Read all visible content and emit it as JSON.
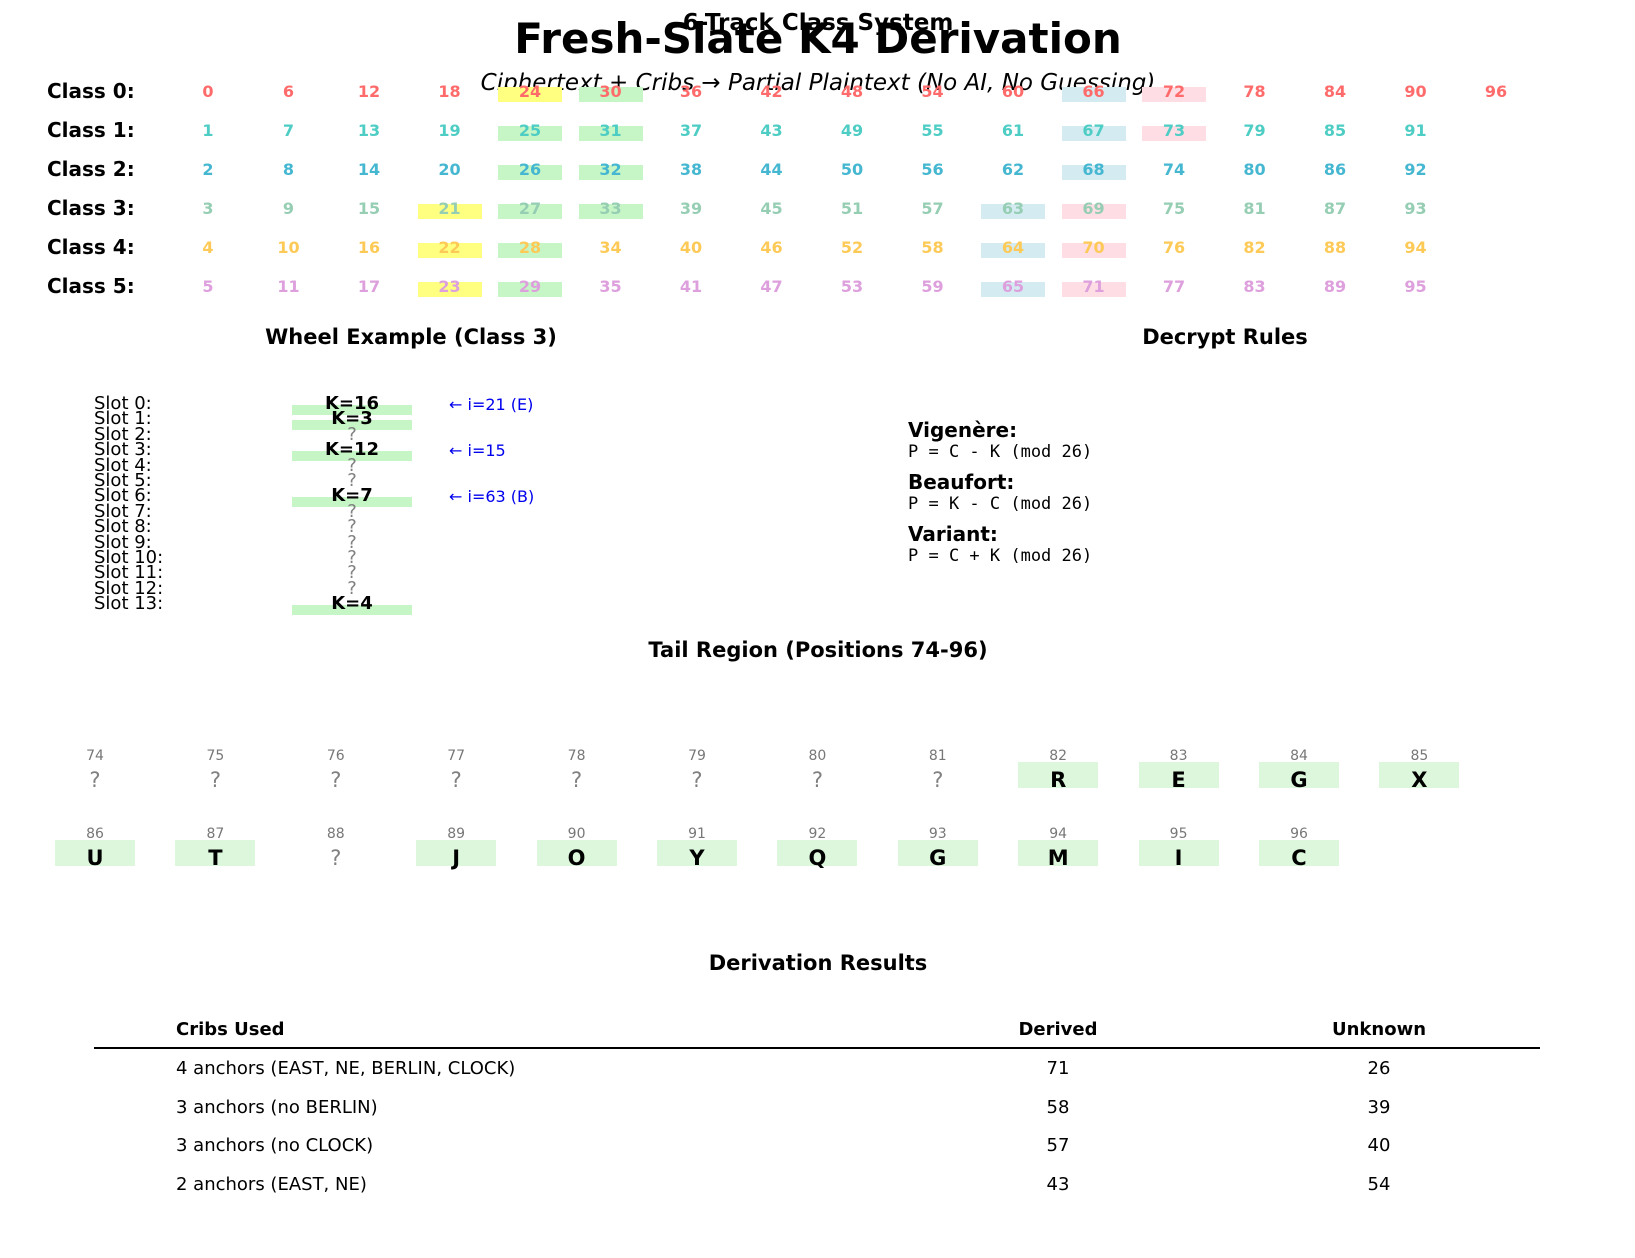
{
  "header": {
    "title": "Fresh-Slate K4 Derivation",
    "subtitle": "Ciphertext + Cribs → Partial Plaintext (No AI, No Guessing)",
    "overlay_title": "6-Track Class System"
  },
  "class_system": {
    "rows": [
      {
        "label": "Class 0:",
        "color": "#ff6b6b",
        "numbers": [
          "0",
          "6",
          "12",
          "18",
          "24",
          "30",
          "36",
          "42",
          "48",
          "54",
          "60",
          "66",
          "72",
          "78",
          "84",
          "90",
          "96"
        ]
      },
      {
        "label": "Class 1:",
        "color": "#4ecdc4",
        "numbers": [
          "1",
          "7",
          "13",
          "19",
          "25",
          "31",
          "37",
          "43",
          "49",
          "55",
          "61",
          "67",
          "73",
          "79",
          "85",
          "91"
        ]
      },
      {
        "label": "Class 2:",
        "color": "#45b7d1",
        "numbers": [
          "2",
          "8",
          "14",
          "20",
          "26",
          "32",
          "38",
          "44",
          "50",
          "56",
          "62",
          "68",
          "74",
          "80",
          "86",
          "92"
        ]
      },
      {
        "label": "Class 3:",
        "color": "#96ceb4",
        "numbers": [
          "3",
          "9",
          "15",
          "21",
          "27",
          "33",
          "39",
          "45",
          "51",
          "57",
          "63",
          "69",
          "75",
          "81",
          "87",
          "93"
        ]
      },
      {
        "label": "Class 4:",
        "color": "#feca57",
        "numbers": [
          "4",
          "10",
          "16",
          "22",
          "28",
          "34",
          "40",
          "46",
          "52",
          "58",
          "64",
          "70",
          "76",
          "82",
          "88",
          "94"
        ]
      },
      {
        "label": "Class 5:",
        "color": "#dda0dd",
        "numbers": [
          "5",
          "11",
          "17",
          "23",
          "29",
          "35",
          "41",
          "47",
          "53",
          "59",
          "65",
          "71",
          "77",
          "83",
          "89",
          "95"
        ]
      }
    ],
    "highlight_colors": {
      "yellow": "#ffff80",
      "green": "#c6f5c6",
      "blue": "#d4ebf2",
      "pink": "#ffdde4"
    },
    "highlights": [
      {
        "row": 0,
        "col": 4,
        "color": "yellow"
      },
      {
        "row": 0,
        "col": 5,
        "color": "green"
      },
      {
        "row": 0,
        "col": 11,
        "color": "blue"
      },
      {
        "row": 0,
        "col": 12,
        "color": "pink"
      },
      {
        "row": 1,
        "col": 4,
        "color": "green"
      },
      {
        "row": 1,
        "col": 5,
        "color": "green"
      },
      {
        "row": 1,
        "col": 11,
        "color": "blue"
      },
      {
        "row": 1,
        "col": 12,
        "color": "pink"
      },
      {
        "row": 2,
        "col": 4,
        "color": "green"
      },
      {
        "row": 2,
        "col": 5,
        "color": "green"
      },
      {
        "row": 2,
        "col": 11,
        "color": "blue"
      },
      {
        "row": 3,
        "col": 3,
        "color": "yellow"
      },
      {
        "row": 3,
        "col": 4,
        "color": "green"
      },
      {
        "row": 3,
        "col": 5,
        "color": "green"
      },
      {
        "row": 3,
        "col": 10,
        "color": "blue"
      },
      {
        "row": 3,
        "col": 11,
        "color": "pink"
      },
      {
        "row": 4,
        "col": 3,
        "color": "yellow"
      },
      {
        "row": 4,
        "col": 4,
        "color": "green"
      },
      {
        "row": 4,
        "col": 10,
        "color": "blue"
      },
      {
        "row": 4,
        "col": 11,
        "color": "pink"
      },
      {
        "row": 5,
        "col": 3,
        "color": "yellow"
      },
      {
        "row": 5,
        "col": 4,
        "color": "green"
      },
      {
        "row": 5,
        "col": 10,
        "color": "blue"
      },
      {
        "row": 5,
        "col": 11,
        "color": "pink"
      }
    ]
  },
  "wheel": {
    "title": "Wheel Example (Class 3)",
    "slots": [
      {
        "label": "Slot 0:",
        "value": "K=16",
        "known": true,
        "note": "← i=21 (E)"
      },
      {
        "label": "Slot 1:",
        "value": "K=3",
        "known": true,
        "note": ""
      },
      {
        "label": "Slot 2:",
        "value": "?",
        "known": false,
        "note": ""
      },
      {
        "label": "Slot 3:",
        "value": "K=12",
        "known": true,
        "note": "← i=15"
      },
      {
        "label": "Slot 4:",
        "value": "?",
        "known": false,
        "note": ""
      },
      {
        "label": "Slot 5:",
        "value": "?",
        "known": false,
        "note": ""
      },
      {
        "label": "Slot 6:",
        "value": "K=7",
        "known": true,
        "note": "← i=63 (B)"
      },
      {
        "label": "Slot 7:",
        "value": "?",
        "known": false,
        "note": ""
      },
      {
        "label": "Slot 8:",
        "value": "?",
        "known": false,
        "note": ""
      },
      {
        "label": "Slot 9:",
        "value": "?",
        "known": false,
        "note": ""
      },
      {
        "label": "Slot 10:",
        "value": "?",
        "known": false,
        "note": ""
      },
      {
        "label": "Slot 11:",
        "value": "?",
        "known": false,
        "note": ""
      },
      {
        "label": "Slot 12:",
        "value": "?",
        "known": false,
        "note": ""
      },
      {
        "label": "Slot 13:",
        "value": "K=4",
        "known": true,
        "note": ""
      }
    ]
  },
  "decrypt": {
    "title": "Decrypt Rules",
    "rules": [
      {
        "name": "Vigenère:",
        "formula": "P = C - K (mod 26)"
      },
      {
        "name": "Beaufort:",
        "formula": "P = K - C (mod 26)"
      },
      {
        "name": "Variant:",
        "formula": "P = C + K (mod 26)"
      }
    ]
  },
  "tail": {
    "title": "Tail Region (Positions 74-96)",
    "rows": [
      [
        {
          "idx": "74",
          "ch": "?"
        },
        {
          "idx": "75",
          "ch": "?"
        },
        {
          "idx": "76",
          "ch": "?"
        },
        {
          "idx": "77",
          "ch": "?"
        },
        {
          "idx": "78",
          "ch": "?"
        },
        {
          "idx": "79",
          "ch": "?"
        },
        {
          "idx": "80",
          "ch": "?"
        },
        {
          "idx": "81",
          "ch": "?"
        },
        {
          "idx": "82",
          "ch": "R"
        },
        {
          "idx": "83",
          "ch": "E"
        },
        {
          "idx": "84",
          "ch": "G"
        },
        {
          "idx": "85",
          "ch": "X"
        }
      ],
      [
        {
          "idx": "86",
          "ch": "U"
        },
        {
          "idx": "87",
          "ch": "T"
        },
        {
          "idx": "88",
          "ch": "?"
        },
        {
          "idx": "89",
          "ch": "J"
        },
        {
          "idx": "90",
          "ch": "O"
        },
        {
          "idx": "91",
          "ch": "Y"
        },
        {
          "idx": "92",
          "ch": "Q"
        },
        {
          "idx": "93",
          "ch": "G"
        },
        {
          "idx": "94",
          "ch": "M"
        },
        {
          "idx": "95",
          "ch": "I"
        },
        {
          "idx": "96",
          "ch": "C"
        }
      ]
    ]
  },
  "results": {
    "title": "Derivation Results",
    "headers": [
      "Cribs Used",
      "Derived",
      "Unknown"
    ],
    "rows": [
      [
        "4 anchors (EAST, NE, BERLIN, CLOCK)",
        "71",
        "26"
      ],
      [
        "3 anchors (no BERLIN)",
        "58",
        "39"
      ],
      [
        "3 anchors (no CLOCK)",
        "57",
        "40"
      ],
      [
        "2 anchors (EAST, NE)",
        "43",
        "54"
      ]
    ]
  }
}
